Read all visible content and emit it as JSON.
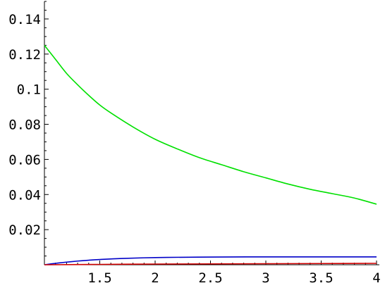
{
  "chart_data": {
    "type": "line",
    "title": "",
    "xlabel": "",
    "ylabel": "",
    "xlim": [
      1,
      4
    ],
    "ylim": [
      0,
      0.15
    ],
    "grid": false,
    "legend": "none",
    "x_ticks": [
      {
        "value": 1.5,
        "label": "1.5"
      },
      {
        "value": 2,
        "label": "2"
      },
      {
        "value": 2.5,
        "label": "2.5"
      },
      {
        "value": 3,
        "label": "3"
      },
      {
        "value": 3.5,
        "label": "3.5"
      },
      {
        "value": 4,
        "label": "4"
      }
    ],
    "y_ticks": [
      {
        "value": 0.02,
        "label": "0.02"
      },
      {
        "value": 0.04,
        "label": "0.04"
      },
      {
        "value": 0.06,
        "label": "0.06"
      },
      {
        "value": 0.08,
        "label": "0.08"
      },
      {
        "value": 0.1,
        "label": "0.1"
      },
      {
        "value": 0.12,
        "label": "0.12"
      },
      {
        "value": 0.14,
        "label": "0.14"
      }
    ],
    "series": [
      {
        "color": "#00e000",
        "points": [
          [
            1.0,
            0.125
          ],
          [
            1.1,
            0.117
          ],
          [
            1.2,
            0.109
          ],
          [
            1.3,
            0.1025
          ],
          [
            1.4,
            0.0965
          ],
          [
            1.5,
            0.091
          ],
          [
            1.6,
            0.0865
          ],
          [
            1.8,
            0.0785
          ],
          [
            2.0,
            0.0715
          ],
          [
            2.2,
            0.066
          ],
          [
            2.4,
            0.061
          ],
          [
            2.6,
            0.057
          ],
          [
            2.8,
            0.053
          ],
          [
            3.0,
            0.0495
          ],
          [
            3.2,
            0.046
          ],
          [
            3.4,
            0.043
          ],
          [
            3.6,
            0.0405
          ],
          [
            3.8,
            0.038
          ],
          [
            4.0,
            0.0345
          ]
        ]
      },
      {
        "color": "#0000c8",
        "points": [
          [
            1.0,
            0.0
          ],
          [
            1.1,
            0.0008
          ],
          [
            1.2,
            0.0015
          ],
          [
            1.3,
            0.0021
          ],
          [
            1.4,
            0.0026
          ],
          [
            1.5,
            0.003
          ],
          [
            1.7,
            0.0036
          ],
          [
            2.0,
            0.0041
          ],
          [
            2.3,
            0.0043
          ],
          [
            2.5,
            0.0044
          ],
          [
            3.0,
            0.0045
          ],
          [
            3.5,
            0.0045
          ],
          [
            4.0,
            0.0045
          ]
        ]
      },
      {
        "color": "#d00000",
        "points": [
          [
            1.0,
            0.0
          ],
          [
            1.5,
            0.0002
          ],
          [
            2.0,
            0.0004
          ],
          [
            2.5,
            0.0005
          ],
          [
            3.0,
            0.0006
          ],
          [
            3.5,
            0.0007
          ],
          [
            4.0,
            0.0008
          ]
        ]
      }
    ]
  }
}
